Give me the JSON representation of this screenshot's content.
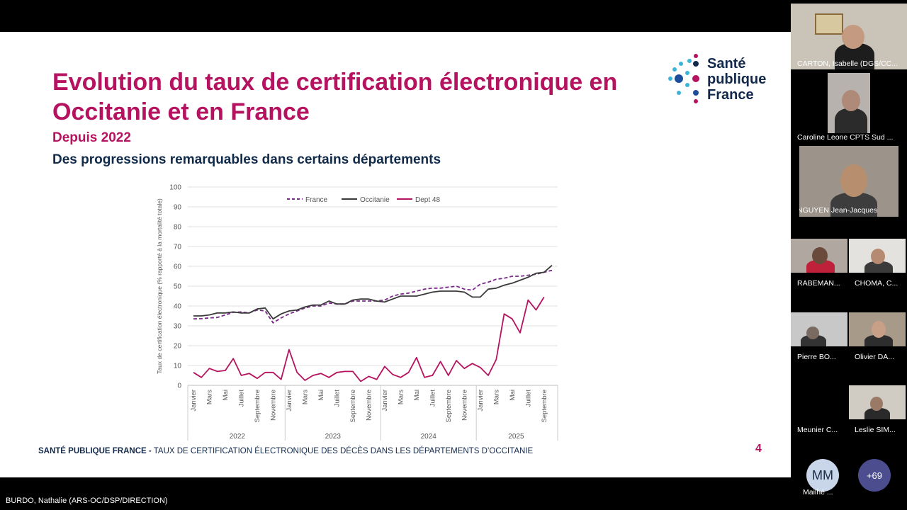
{
  "slide": {
    "title": "Evolution du taux de certification électronique en Occitanie et en France",
    "subtitle": "Depuis 2022",
    "heading": "Des progressions remarquables dans certains départements",
    "logo_text_1": "Santé",
    "logo_text_2": "publique",
    "logo_text_3": "France",
    "footer_bold": "SANTÉ PUBLIQUE FRANCE -",
    "footer_rest": " TAUX DE CERTIFICATION ÉLECTRONIQUE DES DÉCÈS DANS LES DÉPARTEMENTS D’OCCITANIE",
    "page_number": "4"
  },
  "chart_data": {
    "type": "line",
    "ylabel": "Taux de certification électronique (% rapporté à la mortalité totale)",
    "ylim": [
      0,
      100
    ],
    "yticks": [
      "0",
      "10",
      "20",
      "30",
      "40",
      "50",
      "60",
      "70",
      "80",
      "90",
      "100"
    ],
    "month_labels": [
      "Janvier",
      "Mars",
      "Mai",
      "Juillet",
      "Septembre",
      "Novembre"
    ],
    "years": [
      "2022",
      "2023",
      "2024",
      "2025"
    ],
    "legend": [
      "France",
      "Occitanie",
      "Dept 48"
    ],
    "grid": true,
    "legend_position": "top",
    "series": [
      {
        "name": "France",
        "color": "#7a2a8a",
        "dash": true,
        "values": [
          33.5,
          33.6,
          34,
          34.2,
          35.5,
          36.8,
          37,
          36.5,
          38,
          37.5,
          31.5,
          34,
          36,
          37.5,
          39,
          40,
          40,
          41.5,
          41,
          41,
          42.5,
          42.5,
          42.5,
          42.5,
          43,
          45,
          46,
          46.5,
          47.5,
          48.5,
          49,
          49,
          49.5,
          50,
          48.5,
          48,
          51,
          52,
          53.5,
          54,
          55,
          55,
          55.5,
          56,
          57,
          58
        ]
      },
      {
        "name": "Occitanie",
        "color": "#3a3a3a",
        "dash": false,
        "values": [
          35,
          35,
          35.5,
          36.5,
          36.5,
          37,
          36.5,
          36.5,
          38.5,
          39,
          33.5,
          36,
          37.5,
          38,
          39.5,
          40.5,
          40.5,
          42.5,
          41,
          41,
          43,
          43.5,
          43.5,
          42.5,
          42,
          43.5,
          45,
          45,
          45,
          46,
          47,
          47.5,
          47.5,
          47.5,
          47,
          44.5,
          44.5,
          48.5,
          49,
          50.5,
          51.5,
          53,
          54.5,
          56.5,
          57,
          60.5
        ]
      },
      {
        "name": "Dept 48",
        "color": "#b5135f",
        "dash": false,
        "values": [
          6.5,
          4,
          8.5,
          7,
          7.5,
          13.5,
          5,
          6,
          3.5,
          6.5,
          6.5,
          3,
          18,
          6.5,
          2.5,
          5,
          6,
          4,
          6.5,
          7,
          7,
          2,
          4.5,
          3,
          9.5,
          5.5,
          4,
          6.5,
          14,
          4,
          5,
          12,
          5,
          12.5,
          8.5,
          11,
          9,
          5,
          13,
          36,
          33.5,
          26.5,
          43,
          38,
          44.5
        ]
      }
    ]
  },
  "meeting": {
    "presenter": "BURDO, Nathalie (ARS-OC/DSP/DIRECTION)",
    "participants": [
      {
        "name": "CARTON, Isabelle (DGS/CC..."
      },
      {
        "name": "Caroline Leone CPTS Sud ..."
      },
      {
        "name": "NGUYEN Jean-Jacques"
      },
      {
        "name": "RABEMAN..."
      },
      {
        "name": "CHOMA, C..."
      },
      {
        "name": "Pierre BO..."
      },
      {
        "name": "Olivier DA..."
      },
      {
        "name": "Meunier C..."
      },
      {
        "name": "Leslie SIM..."
      }
    ],
    "avatar_initials": "MM",
    "avatar_name": "Mailhé ...",
    "more_count": "+69"
  }
}
